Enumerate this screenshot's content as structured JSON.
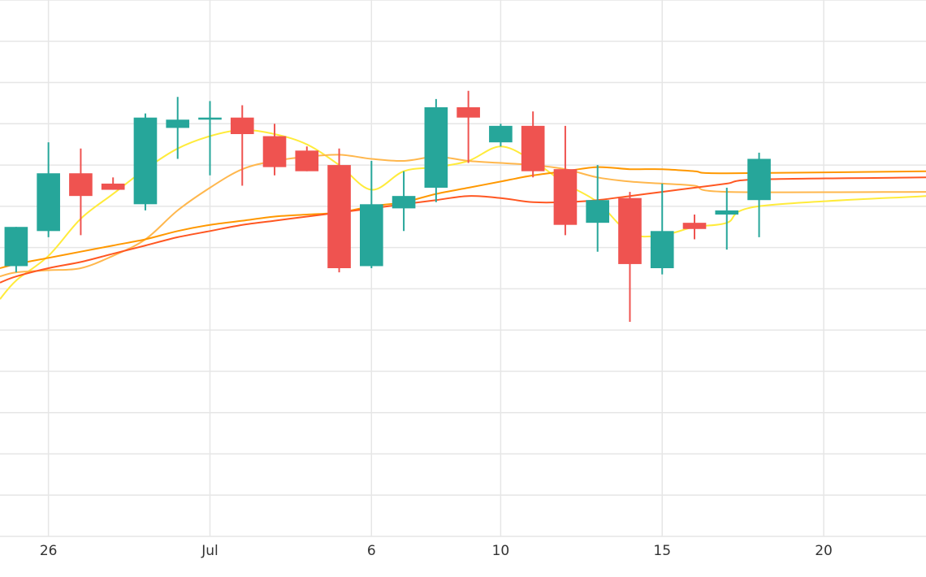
{
  "chart_data": {
    "type": "candlestick",
    "x_ticks": [
      {
        "date": "2023-06-26",
        "label": "26"
      },
      {
        "date": "2023-07-01",
        "label": "Jul"
      },
      {
        "date": "2023-07-06",
        "label": "6"
      },
      {
        "date": "2023-07-10",
        "label": "10"
      },
      {
        "date": "2023-07-15",
        "label": "15"
      },
      {
        "date": "2023-07-20",
        "label": "20"
      }
    ],
    "xlim": [
      "2023-06-24T12:00",
      "2023-07-23T04:00"
    ],
    "ylim": [
      0,
      13
    ],
    "grid": true,
    "legend": "none",
    "colors": {
      "up": "#26a69a",
      "down": "#ef5350",
      "grid": "#e6e6e6",
      "ma_lines": [
        "#ffeb3b",
        "#ffb74d",
        "#ff9800",
        "#ff5722"
      ]
    },
    "candles": [
      {
        "date": "2023-06-25",
        "open": 6.55,
        "high": 7.5,
        "low": 6.4,
        "close": 7.5
      },
      {
        "date": "2023-06-26",
        "open": 7.4,
        "high": 9.55,
        "low": 7.25,
        "close": 8.8
      },
      {
        "date": "2023-06-27",
        "open": 8.8,
        "high": 9.4,
        "low": 7.3,
        "close": 8.25
      },
      {
        "date": "2023-06-28",
        "open": 8.55,
        "high": 8.7,
        "low": 8.4,
        "close": 8.4
      },
      {
        "date": "2023-06-29",
        "open": 8.05,
        "high": 10.25,
        "low": 7.9,
        "close": 10.15
      },
      {
        "date": "2023-06-30",
        "open": 9.9,
        "high": 10.65,
        "low": 9.15,
        "close": 10.1
      },
      {
        "date": "2023-07-01",
        "open": 10.1,
        "high": 10.55,
        "low": 8.75,
        "close": 10.15
      },
      {
        "date": "2023-07-02",
        "open": 10.15,
        "high": 10.45,
        "low": 8.5,
        "close": 9.75
      },
      {
        "date": "2023-07-03",
        "open": 9.7,
        "high": 10.0,
        "low": 8.75,
        "close": 8.95
      },
      {
        "date": "2023-07-04",
        "open": 9.35,
        "high": 9.45,
        "low": 8.85,
        "close": 8.85
      },
      {
        "date": "2023-07-05",
        "open": 9.0,
        "high": 9.4,
        "low": 6.4,
        "close": 6.5
      },
      {
        "date": "2023-07-06",
        "open": 6.55,
        "high": 9.1,
        "low": 6.5,
        "close": 8.05
      },
      {
        "date": "2023-07-07",
        "open": 7.95,
        "high": 8.85,
        "low": 7.4,
        "close": 8.25
      },
      {
        "date": "2023-07-08",
        "open": 8.45,
        "high": 10.6,
        "low": 8.1,
        "close": 10.4
      },
      {
        "date": "2023-07-09",
        "open": 10.4,
        "high": 10.8,
        "low": 9.05,
        "close": 10.15
      },
      {
        "date": "2023-07-10",
        "open": 9.55,
        "high": 10.0,
        "low": 9.45,
        "close": 9.95
      },
      {
        "date": "2023-07-11",
        "open": 9.95,
        "high": 10.3,
        "low": 8.7,
        "close": 8.85
      },
      {
        "date": "2023-07-12",
        "open": 8.9,
        "high": 9.95,
        "low": 7.3,
        "close": 7.55
      },
      {
        "date": "2023-07-13",
        "open": 7.6,
        "high": 9.0,
        "low": 6.9,
        "close": 8.15
      },
      {
        "date": "2023-07-14",
        "open": 8.2,
        "high": 8.35,
        "low": 5.2,
        "close": 6.6
      },
      {
        "date": "2023-07-15",
        "open": 6.5,
        "high": 8.55,
        "low": 6.35,
        "close": 7.4
      },
      {
        "date": "2023-07-16",
        "open": 7.6,
        "high": 7.8,
        "low": 7.2,
        "close": 7.45
      },
      {
        "date": "2023-07-17",
        "open": 7.8,
        "high": 8.45,
        "low": 6.95,
        "close": 7.9
      },
      {
        "date": "2023-07-18",
        "open": 8.15,
        "high": 9.3,
        "low": 7.25,
        "close": 9.15
      }
    ],
    "moving_averages": [
      {
        "color": "#ffeb3b",
        "points": [
          [
            "2023-06-24T12:00",
            5.75
          ],
          [
            "2023-06-25",
            6.2
          ],
          [
            "2023-06-26",
            6.8
          ],
          [
            "2023-06-27",
            7.7
          ],
          [
            "2023-06-28",
            8.3
          ],
          [
            "2023-06-29",
            8.9
          ],
          [
            "2023-06-30",
            9.4
          ],
          [
            "2023-07-01",
            9.7
          ],
          [
            "2023-07-02",
            9.85
          ],
          [
            "2023-07-03",
            9.75
          ],
          [
            "2023-07-04",
            9.5
          ],
          [
            "2023-07-05",
            9.0
          ],
          [
            "2023-07-06",
            8.4
          ],
          [
            "2023-07-07",
            8.85
          ],
          [
            "2023-07-08",
            8.95
          ],
          [
            "2023-07-09",
            9.1
          ],
          [
            "2023-07-10",
            9.45
          ],
          [
            "2023-07-11",
            9.1
          ],
          [
            "2023-07-12",
            8.55
          ],
          [
            "2023-07-13",
            8.1
          ],
          [
            "2023-07-14",
            7.35
          ],
          [
            "2023-07-15",
            7.3
          ],
          [
            "2023-07-16",
            7.5
          ],
          [
            "2023-07-17",
            7.6
          ],
          [
            "2023-07-18",
            8.0
          ],
          [
            "2023-07-23T04:00",
            8.25
          ]
        ]
      },
      {
        "color": "#ffb74d",
        "points": [
          [
            "2023-06-24T12:00",
            6.3
          ],
          [
            "2023-06-25",
            6.4
          ],
          [
            "2023-06-26",
            6.45
          ],
          [
            "2023-06-27",
            6.5
          ],
          [
            "2023-06-28",
            6.8
          ],
          [
            "2023-06-29",
            7.2
          ],
          [
            "2023-06-30",
            7.9
          ],
          [
            "2023-07-01",
            8.45
          ],
          [
            "2023-07-02",
            8.9
          ],
          [
            "2023-07-03",
            9.1
          ],
          [
            "2023-07-04",
            9.2
          ],
          [
            "2023-07-05",
            9.25
          ],
          [
            "2023-07-06",
            9.15
          ],
          [
            "2023-07-07",
            9.1
          ],
          [
            "2023-07-08",
            9.2
          ],
          [
            "2023-07-09",
            9.1
          ],
          [
            "2023-07-10",
            9.05
          ],
          [
            "2023-07-11",
            9.0
          ],
          [
            "2023-07-12",
            8.9
          ],
          [
            "2023-07-13",
            8.7
          ],
          [
            "2023-07-14",
            8.6
          ],
          [
            "2023-07-15",
            8.55
          ],
          [
            "2023-07-16",
            8.5
          ],
          [
            "2023-07-17",
            8.35
          ],
          [
            "2023-07-23T04:00",
            8.35
          ]
        ]
      },
      {
        "color": "#ff9800",
        "points": [
          [
            "2023-06-24T12:00",
            6.5
          ],
          [
            "2023-06-25",
            6.6
          ],
          [
            "2023-06-26",
            6.75
          ],
          [
            "2023-06-27",
            6.9
          ],
          [
            "2023-06-28",
            7.05
          ],
          [
            "2023-06-29",
            7.2
          ],
          [
            "2023-06-30",
            7.4
          ],
          [
            "2023-07-01",
            7.55
          ],
          [
            "2023-07-02",
            7.65
          ],
          [
            "2023-07-03",
            7.75
          ],
          [
            "2023-07-04",
            7.8
          ],
          [
            "2023-07-05",
            7.85
          ],
          [
            "2023-07-06",
            8.0
          ],
          [
            "2023-07-07",
            8.1
          ],
          [
            "2023-07-08",
            8.3
          ],
          [
            "2023-07-09",
            8.45
          ],
          [
            "2023-07-10",
            8.6
          ],
          [
            "2023-07-11",
            8.75
          ],
          [
            "2023-07-12",
            8.85
          ],
          [
            "2023-07-13",
            8.95
          ],
          [
            "2023-07-14",
            8.9
          ],
          [
            "2023-07-15",
            8.9
          ],
          [
            "2023-07-16",
            8.85
          ],
          [
            "2023-07-17",
            8.8
          ],
          [
            "2023-07-23T04:00",
            8.85
          ]
        ]
      },
      {
        "color": "#ff5722",
        "points": [
          [
            "2023-06-24T12:00",
            6.15
          ],
          [
            "2023-06-25",
            6.3
          ],
          [
            "2023-06-26",
            6.5
          ],
          [
            "2023-06-27",
            6.65
          ],
          [
            "2023-06-28",
            6.85
          ],
          [
            "2023-06-29",
            7.05
          ],
          [
            "2023-06-30",
            7.25
          ],
          [
            "2023-07-01",
            7.4
          ],
          [
            "2023-07-02",
            7.55
          ],
          [
            "2023-07-03",
            7.65
          ],
          [
            "2023-07-04",
            7.75
          ],
          [
            "2023-07-05",
            7.85
          ],
          [
            "2023-07-06",
            7.95
          ],
          [
            "2023-07-07",
            8.05
          ],
          [
            "2023-07-08",
            8.15
          ],
          [
            "2023-07-09",
            8.25
          ],
          [
            "2023-07-10",
            8.2
          ],
          [
            "2023-07-11",
            8.1
          ],
          [
            "2023-07-12",
            8.1
          ],
          [
            "2023-07-13",
            8.15
          ],
          [
            "2023-07-14",
            8.25
          ],
          [
            "2023-07-15",
            8.35
          ],
          [
            "2023-07-16",
            8.45
          ],
          [
            "2023-07-17",
            8.55
          ],
          [
            "2023-07-18",
            8.65
          ],
          [
            "2023-07-23T04:00",
            8.7
          ]
        ]
      }
    ]
  }
}
